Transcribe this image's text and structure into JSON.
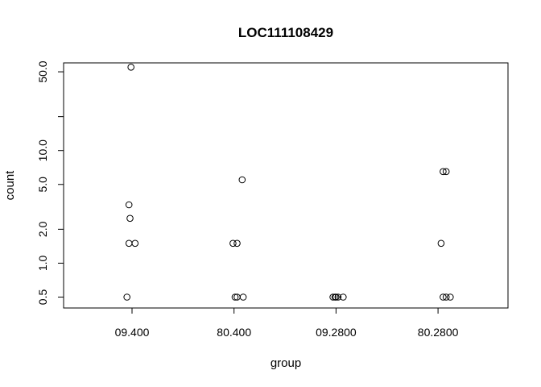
{
  "chart_data": {
    "type": "scatter",
    "title": "LOC111108429",
    "xlabel": "group",
    "ylabel": "count",
    "categories": [
      "09.400",
      "80.400",
      "09.2800",
      "80.2800"
    ],
    "y_scale": "log",
    "ylim": [
      0.4,
      60
    ],
    "yticks": [
      0.5,
      1.0,
      2.0,
      5.0,
      10.0,
      20.0,
      50.0
    ],
    "ytick_labels": [
      "0.5",
      "1.0",
      "2.0",
      "5.0",
      "10.0",
      "",
      "50.0"
    ],
    "grid": false,
    "points": [
      {
        "group": "09.400",
        "jitter": -0.01,
        "y": 55
      },
      {
        "group": "09.400",
        "jitter": -0.03,
        "y": 3.3
      },
      {
        "group": "09.400",
        "jitter": -0.02,
        "y": 2.5
      },
      {
        "group": "09.400",
        "jitter": -0.03,
        "y": 1.5
      },
      {
        "group": "09.400",
        "jitter": 0.03,
        "y": 1.5
      },
      {
        "group": "09.400",
        "jitter": -0.05,
        "y": 0.5
      },
      {
        "group": "80.400",
        "jitter": 0.08,
        "y": 5.5
      },
      {
        "group": "80.400",
        "jitter": -0.01,
        "y": 1.5
      },
      {
        "group": "80.400",
        "jitter": 0.03,
        "y": 1.5
      },
      {
        "group": "80.400",
        "jitter": 0.01,
        "y": 0.5
      },
      {
        "group": "80.400",
        "jitter": 0.03,
        "y": 0.5
      },
      {
        "group": "80.400",
        "jitter": 0.09,
        "y": 0.5
      },
      {
        "group": "09.2800",
        "jitter": -0.03,
        "y": 0.5
      },
      {
        "group": "09.2800",
        "jitter": -0.01,
        "y": 0.5
      },
      {
        "group": "09.2800",
        "jitter": 0.0,
        "y": 0.5
      },
      {
        "group": "09.2800",
        "jitter": 0.02,
        "y": 0.5
      },
      {
        "group": "09.2800",
        "jitter": 0.07,
        "y": 0.5
      },
      {
        "group": "80.2800",
        "jitter": 0.05,
        "y": 6.5
      },
      {
        "group": "80.2800",
        "jitter": 0.08,
        "y": 6.5
      },
      {
        "group": "80.2800",
        "jitter": 0.03,
        "y": 1.5
      },
      {
        "group": "80.2800",
        "jitter": 0.05,
        "y": 0.5
      },
      {
        "group": "80.2800",
        "jitter": 0.08,
        "y": 0.5
      },
      {
        "group": "80.2800",
        "jitter": 0.12,
        "y": 0.5
      }
    ]
  }
}
